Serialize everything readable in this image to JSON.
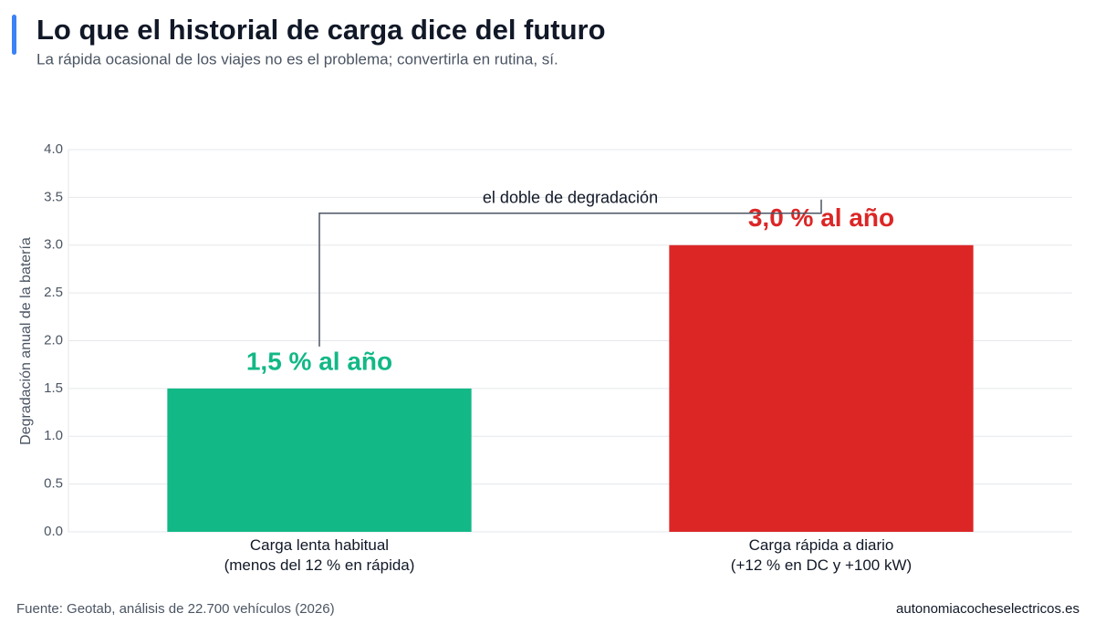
{
  "chart_data": {
    "type": "bar",
    "title": "Lo que el historial de carga dice del futuro",
    "subtitle": "La rápida ocasional de los viajes no es el problema; convertirla en rutina, sí.",
    "y_label": "Degradación anual de la batería",
    "categories": [
      "Carga lenta habitual\n(menos del 12 % en rápida)",
      "Carga rápida a diario\n(+12 % en DC y +100 kW)"
    ],
    "values": [
      1.5,
      3.0
    ],
    "value_labels": [
      "1,5 %  al año",
      "3,0 %  al año"
    ],
    "colors": [
      "#12b886",
      "#dc2626"
    ],
    "annotation": "el doble de degradación",
    "ylim": [
      0,
      4
    ],
    "yticks": [
      {
        "value": 0,
        "label": "0.0"
      },
      {
        "value": 0.5,
        "label": "0.5"
      },
      {
        "value": 1,
        "label": "1.0"
      },
      {
        "value": 1.5,
        "label": "1.5"
      },
      {
        "value": 2,
        "label": "2.0"
      },
      {
        "value": 2.5,
        "label": "2.5"
      },
      {
        "value": 3,
        "label": "3.0"
      },
      {
        "value": 3.5,
        "label": "3.5"
      },
      {
        "value": 4,
        "label": "4.0"
      }
    ],
    "grid": true,
    "source": "Fuente: Geotab, análisis de 22.700 vehículos (2026)",
    "credit": "autonomiacocheselectricos.es"
  }
}
